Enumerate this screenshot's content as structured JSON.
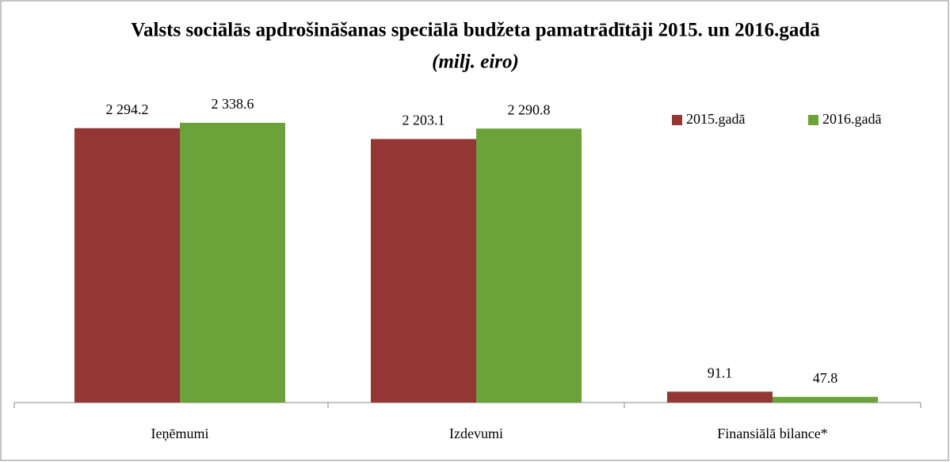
{
  "chart_data": {
    "type": "bar",
    "title": "Valsts sociālās apdrošināšanas speciālā budžeta pamatrādītāji 2015. un 2016.gadā",
    "subtitle": "(milj. eiro)",
    "categories": [
      "Ieņēmumi",
      "Izdevumi",
      "Finansiālā bilance*"
    ],
    "series": [
      {
        "name": "2015.gadā",
        "color": "#943634",
        "values": [
          2294.2,
          2203.1,
          91.1
        ],
        "value_labels": [
          "2 294.2",
          "2 203.1",
          "91.1"
        ]
      },
      {
        "name": "2016.gadā",
        "color": "#6ca23a",
        "values": [
          2338.6,
          2290.8,
          47.8
        ],
        "value_labels": [
          "2 338.6",
          "2 290.8",
          "47.8"
        ]
      }
    ],
    "legend": "top-right"
  }
}
